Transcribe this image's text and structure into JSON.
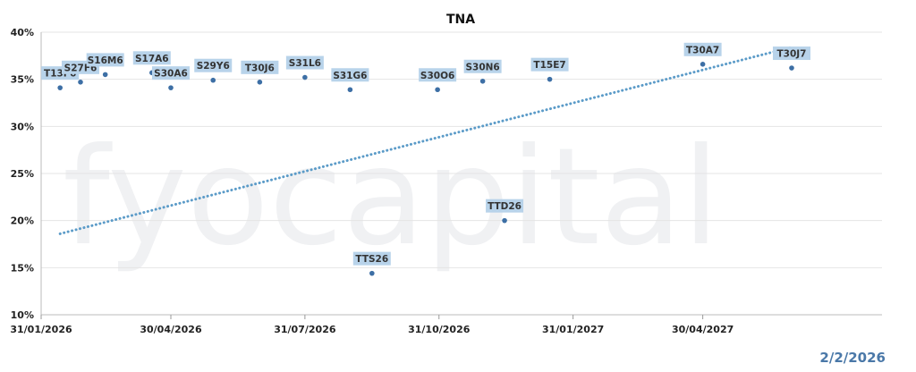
{
  "watermark": "fyocapital",
  "report_date": "2/2/2026",
  "chart_data": {
    "type": "scatter",
    "title": "TNA",
    "xlabel": "",
    "ylabel": "",
    "xlim": [
      "2026-01-31",
      "2027-08-31"
    ],
    "ylim": [
      10,
      40
    ],
    "yticks": [
      10,
      15,
      20,
      25,
      30,
      35,
      40
    ],
    "ytick_labels": [
      "10%",
      "15%",
      "20%",
      "25%",
      "30%",
      "35%",
      "40%"
    ],
    "xticks": [
      "2026-01-31",
      "2026-04-30",
      "2026-07-31",
      "2026-10-31",
      "2027-01-31",
      "2027-04-30"
    ],
    "xtick_labels": [
      "31/01/2026",
      "30/04/2026",
      "31/07/2026",
      "31/10/2026",
      "31/01/2027",
      "30/04/2027"
    ],
    "grid": true,
    "point_color": "#3d6fa5",
    "label_bg": "#b8d3ea",
    "trend_color": "#5b9bc8",
    "points": [
      {
        "label": "T13F6",
        "x": "2026-02-13",
        "y": 34.1
      },
      {
        "label": "S27F6",
        "x": "2026-02-27",
        "y": 34.7
      },
      {
        "label": "S16M6",
        "x": "2026-03-16",
        "y": 35.5
      },
      {
        "label": "S17A6",
        "x": "2026-04-17",
        "y": 35.7
      },
      {
        "label": "S30A6",
        "x": "2026-04-30",
        "y": 34.1
      },
      {
        "label": "S29Y6",
        "x": "2026-05-29",
        "y": 34.9
      },
      {
        "label": "T30J6",
        "x": "2026-06-30",
        "y": 34.7
      },
      {
        "label": "S31L6",
        "x": "2026-07-31",
        "y": 35.2
      },
      {
        "label": "S31G6",
        "x": "2026-08-31",
        "y": 33.9
      },
      {
        "label": "TTS26",
        "x": "2026-09-15",
        "y": 14.4
      },
      {
        "label": "S30O6",
        "x": "2026-10-30",
        "y": 33.9
      },
      {
        "label": "S30N6",
        "x": "2026-11-30",
        "y": 34.8
      },
      {
        "label": "TTD26",
        "x": "2026-12-15",
        "y": 20.0
      },
      {
        "label": "T15E7",
        "x": "2027-01-15",
        "y": 35.0
      },
      {
        "label": "T30A7",
        "x": "2027-04-30",
        "y": 36.6
      },
      {
        "label": "T30J7",
        "x": "2027-06-30",
        "y": 36.2
      }
    ],
    "trendline": {
      "style": "dotted",
      "start": {
        "x": "2026-02-13",
        "y": 18.6
      },
      "end": {
        "x": "2027-06-30",
        "y": 38.4
      }
    }
  }
}
